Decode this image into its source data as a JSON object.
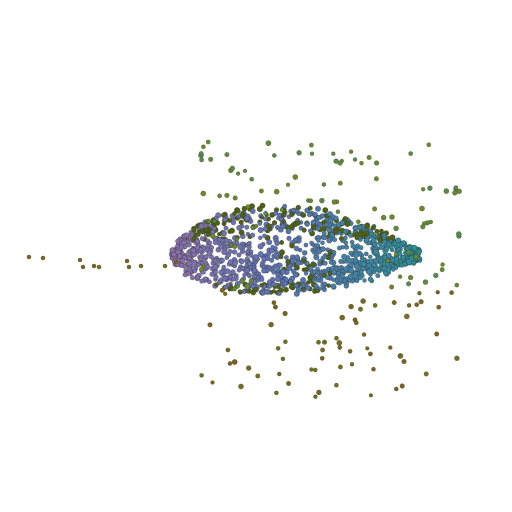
{
  "scene": {
    "subject": "point-cloud",
    "background": "#ffffff",
    "palette": {
      "violet": "#8a6fae",
      "blue": "#5a73b8",
      "teal": "#2a8f9c",
      "olive": "#6e8a22",
      "brown": "#7a5a1c",
      "outline": "#3a3a2a"
    }
  }
}
